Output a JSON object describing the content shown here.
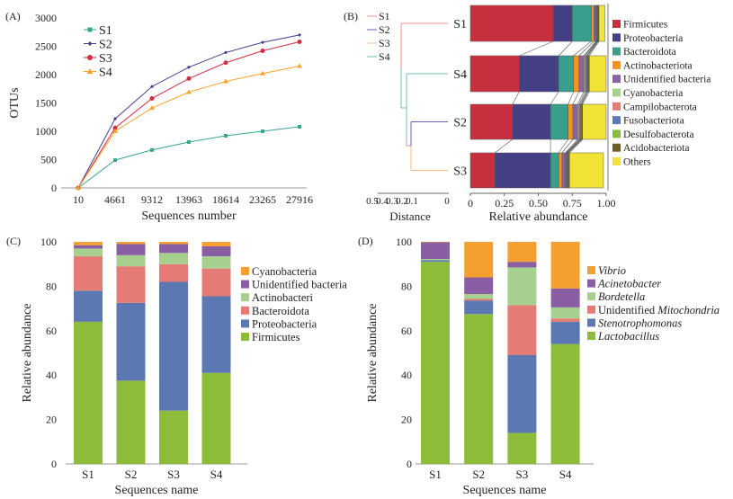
{
  "chart_data": [
    {
      "panel": "(A)",
      "type": "line",
      "title": "",
      "xlabel": "Sequences number",
      "ylabel": "OTUs",
      "x": [
        "10",
        "4661",
        "9312",
        "13963",
        "18614",
        "23265",
        "27916"
      ],
      "ylim": [
        0,
        3000
      ],
      "yticks": [
        0,
        500,
        1000,
        1500,
        2000,
        2500,
        3000
      ],
      "legend_position": "top-left",
      "series": [
        {
          "name": "S1",
          "color": "#3aa58f",
          "marker": "square",
          "values": [
            0,
            490,
            670,
            810,
            920,
            1000,
            1080
          ]
        },
        {
          "name": "S2",
          "color": "#4a3d8f",
          "marker": "diamond",
          "values": [
            0,
            1220,
            1790,
            2130,
            2390,
            2570,
            2700
          ]
        },
        {
          "name": "S3",
          "color": "#d12e43",
          "marker": "circle",
          "values": [
            0,
            1060,
            1580,
            1930,
            2210,
            2420,
            2580
          ]
        },
        {
          "name": "S4",
          "color": "#f5a32b",
          "marker": "triangle",
          "values": [
            0,
            1000,
            1410,
            1690,
            1880,
            2020,
            2150
          ]
        }
      ]
    },
    {
      "panel": "(B)",
      "type": "bar",
      "orientation": "horizontal-stacked",
      "xlabel": "Relative abundance",
      "xticks": [
        "0",
        "0.25",
        "0.50",
        "0.75",
        "1.00"
      ],
      "xlim": [
        0,
        1
      ],
      "dendrogram": {
        "xlabel": "Distance",
        "xticks": [
          "0.5",
          "0.4",
          "0.3",
          "0.2",
          "0.1",
          "0"
        ],
        "order": [
          "S1",
          "S4",
          "S2",
          "S3"
        ],
        "legend": [
          {
            "name": "S1",
            "color": "#f08f8f"
          },
          {
            "name": "S2",
            "color": "#6a5fb0"
          },
          {
            "name": "S3",
            "color": "#f8be7a"
          },
          {
            "name": "S4",
            "color": "#6fc2ae"
          }
        ],
        "label_colors": {
          "S1": "#d12e43",
          "S2": "#4a3d8f",
          "S3": "#f5a32b",
          "S4": "#3aa58f"
        }
      },
      "categories": [
        "S1",
        "S4",
        "S2",
        "S3"
      ],
      "legend_position": "right",
      "series": [
        {
          "name": "Firmicutes",
          "color": "#c9303f",
          "values": [
            0.61,
            0.36,
            0.31,
            0.18
          ]
        },
        {
          "name": "Proteobacteria",
          "color": "#453f86",
          "values": [
            0.14,
            0.29,
            0.28,
            0.41
          ]
        },
        {
          "name": "Bacteroidota",
          "color": "#3a9e8d",
          "values": [
            0.14,
            0.11,
            0.13,
            0.06
          ]
        },
        {
          "name": "Actinobacteriota",
          "color": "#f39322",
          "values": [
            0.02,
            0.04,
            0.035,
            0.025
          ]
        },
        {
          "name": "Unidentified bacteria",
          "color": "#8c62a6",
          "values": [
            0.015,
            0.035,
            0.035,
            0.025
          ]
        },
        {
          "name": "Cyanobacteria",
          "color": "#a5d18e",
          "values": [
            0.005,
            0.01,
            0.01,
            0.005
          ]
        },
        {
          "name": "Campilobacterota",
          "color": "#e57b75",
          "values": [
            0.004,
            0.01,
            0.008,
            0.005
          ]
        },
        {
          "name": "Fusobacteriota",
          "color": "#5c7bb6",
          "values": [
            0.003,
            0.006,
            0.006,
            0.005
          ]
        },
        {
          "name": "Desulfobacterota",
          "color": "#8bbd3a",
          "values": [
            0.004,
            0.006,
            0.006,
            0.006
          ]
        },
        {
          "name": "Acidobacteriota",
          "color": "#6b6024",
          "values": [
            0.006,
            0.009,
            0.006,
            0.009
          ]
        },
        {
          "name": "Others",
          "color": "#f2e436",
          "values": [
            0.043,
            0.134,
            0.18,
            0.25
          ]
        }
      ]
    },
    {
      "panel": "(C)",
      "type": "bar",
      "orientation": "vertical-stacked",
      "xlabel": "Sequences name",
      "ylabel": "Relative abundance",
      "categories": [
        "S1",
        "S2",
        "S3",
        "S4"
      ],
      "ylim": [
        0,
        100
      ],
      "yticks": [
        0,
        20,
        40,
        60,
        80,
        100
      ],
      "legend_position": "right",
      "series": [
        {
          "name": "Firmicutes",
          "color": "#8dbb3a",
          "values": [
            64,
            37.5,
            24,
            41
          ]
        },
        {
          "name": "Proteobacteria",
          "color": "#5b78b3",
          "values": [
            14,
            35,
            58,
            34.5
          ]
        },
        {
          "name": "Bacteroidota",
          "color": "#e57b75",
          "values": [
            15.5,
            16.5,
            8,
            12.5
          ]
        },
        {
          "name": "Actinobacteri",
          "color": "#a7d08f",
          "values": [
            3.5,
            5,
            5,
            5.5
          ]
        },
        {
          "name": "Unidentified bacteria",
          "color": "#8a5ea3",
          "values": [
            1.5,
            5,
            4,
            4.5
          ]
        },
        {
          "name": "Cyanobacteria",
          "color": "#f3a030",
          "values": [
            1.5,
            1,
            1,
            2
          ]
        }
      ]
    },
    {
      "panel": "(D)",
      "type": "bar",
      "orientation": "vertical-stacked",
      "xlabel": "Sequences name",
      "ylabel": "Relative abundance",
      "categories": [
        "S1",
        "S2",
        "S3",
        "S4"
      ],
      "ylim": [
        0,
        100
      ],
      "yticks": [
        0,
        20,
        40,
        60,
        80,
        100
      ],
      "legend_position": "right",
      "series": [
        {
          "name": "Lactobacillus",
          "label_parts": [
            {
              "t": "Lactobacillus",
              "italic": true
            }
          ],
          "color": "#8dbb3a",
          "values": [
            91,
            67.5,
            14,
            54
          ]
        },
        {
          "name": "Stenotrophomonas",
          "label_parts": [
            {
              "t": "Stenotrophomonas",
              "italic": true
            }
          ],
          "color": "#5b78b3",
          "values": [
            0.8,
            6,
            35,
            10
          ]
        },
        {
          "name": "Unidentified Mitochondria",
          "label_parts": [
            {
              "t": "Unidentified ",
              "italic": false
            },
            {
              "t": "Mitochondria",
              "italic": true
            }
          ],
          "color": "#e57b75",
          "values": [
            0,
            0.8,
            22.5,
            1.5
          ]
        },
        {
          "name": "Bordetella",
          "label_parts": [
            {
              "t": "Bordetella",
              "italic": true
            }
          ],
          "color": "#a7d08f",
          "values": [
            0.5,
            2.2,
            17,
            5
          ]
        },
        {
          "name": "Acinetobacter",
          "label_parts": [
            {
              "t": "Acinetobacter",
              "italic": true
            }
          ],
          "color": "#8a5ea3",
          "values": [
            7.5,
            7.5,
            2.5,
            8.5
          ]
        },
        {
          "name": "Vibrio",
          "label_parts": [
            {
              "t": "Vibrio",
              "italic": true
            }
          ],
          "color": "#f3a030",
          "values": [
            0.2,
            16,
            9,
            21
          ]
        }
      ]
    }
  ]
}
